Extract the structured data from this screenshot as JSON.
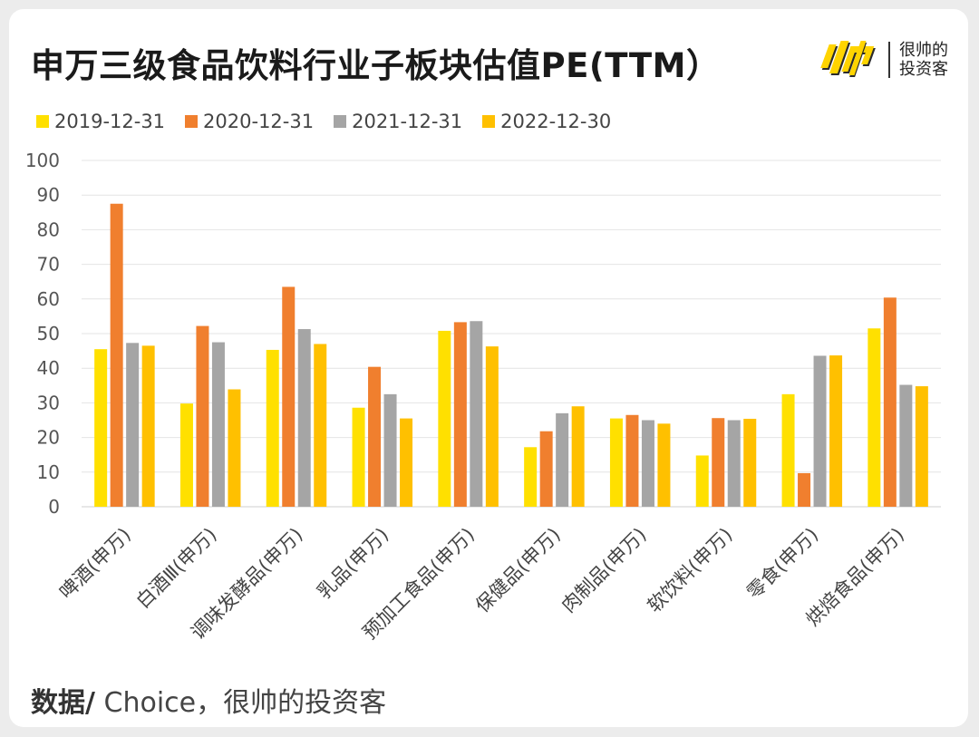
{
  "title": "申万三级食品饮料行业子板块估值PE(TTM）",
  "brand": {
    "line1": "很帅的",
    "line2": "投资客",
    "logo_icon": "shuai-logo-icon"
  },
  "footer": {
    "label": "数据/",
    "source": " Choice，很帅的投资客"
  },
  "chart_data": {
    "type": "bar",
    "title": "申万三级食品饮料行业子板块估值PE(TTM）",
    "xlabel": "",
    "ylabel": "",
    "ylim": [
      0,
      100
    ],
    "yticks": [
      0,
      10,
      20,
      30,
      40,
      50,
      60,
      70,
      80,
      90,
      100
    ],
    "grid": true,
    "legend_position": "top-left",
    "categories": [
      "啤酒(申万)",
      "白酒Ⅲ(申万)",
      "调味发酵品(申万)",
      "乳品(申万)",
      "预加工食品(申万)",
      "保健品(申万)",
      "肉制品(申万)",
      "软饮料(申万)",
      "零食(申万)",
      "烘焙食品(申万)"
    ],
    "series": [
      {
        "name": "2019-12-31",
        "color": "#FFE000",
        "values": [
          45.5,
          29.8,
          45.3,
          28.6,
          50.8,
          17.2,
          25.5,
          14.8,
          32.5,
          51.5
        ]
      },
      {
        "name": "2020-12-31",
        "color": "#F07F2E",
        "values": [
          87.5,
          52.2,
          63.5,
          40.4,
          53.3,
          21.8,
          26.5,
          25.6,
          9.7,
          60.4
        ]
      },
      {
        "name": "2021-12-31",
        "color": "#A5A5A5",
        "values": [
          47.3,
          47.5,
          51.3,
          32.5,
          53.6,
          27.0,
          25.0,
          25.0,
          43.6,
          35.2
        ]
      },
      {
        "name": "2022-12-30",
        "color": "#FFC000",
        "values": [
          46.5,
          33.9,
          47.0,
          25.5,
          46.3,
          29.0,
          24.0,
          25.4,
          43.7,
          34.8
        ]
      }
    ]
  }
}
